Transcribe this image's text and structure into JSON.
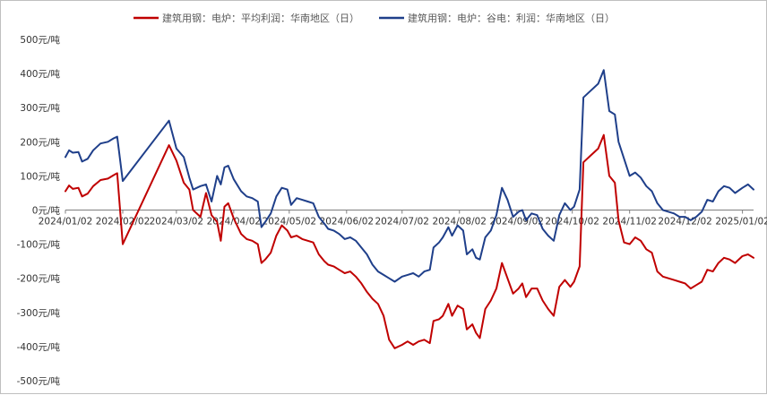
{
  "chart_data": {
    "type": "line",
    "title": "",
    "xlabel": "",
    "ylabel": "",
    "ylim": [
      -500,
      500
    ],
    "y_ticks": [
      {
        "value": 500,
        "label": "500元/吨"
      },
      {
        "value": 400,
        "label": "400元/吨"
      },
      {
        "value": 300,
        "label": "300元/吨"
      },
      {
        "value": 200,
        "label": "200元/吨"
      },
      {
        "value": 100,
        "label": "100元/吨"
      },
      {
        "value": 0,
        "label": "0元/吨"
      },
      {
        "value": -100,
        "label": "-100元/吨"
      },
      {
        "value": -200,
        "label": "-200元/吨"
      },
      {
        "value": -300,
        "label": "-300元/吨"
      },
      {
        "value": -400,
        "label": "-400元/吨"
      },
      {
        "value": -500,
        "label": "-500元/吨"
      }
    ],
    "x_range": [
      "2024-01-02",
      "2025-01-08"
    ],
    "x_ticks": [
      {
        "date": "2024-01-02",
        "label": "2024/01/02"
      },
      {
        "date": "2024-02-02",
        "label": "2024/02/02"
      },
      {
        "date": "2024-03-02",
        "label": "2024/03/02"
      },
      {
        "date": "2024-04-02",
        "label": "2024/04/02"
      },
      {
        "date": "2024-05-02",
        "label": "2024/05/02"
      },
      {
        "date": "2024-06-02",
        "label": "2024/06/02"
      },
      {
        "date": "2024-07-02",
        "label": "2024/07/02"
      },
      {
        "date": "2024-08-02",
        "label": "2024/08/02"
      },
      {
        "date": "2024-09-02",
        "label": "2024/09/02"
      },
      {
        "date": "2024-10-02",
        "label": "2024/10/02"
      },
      {
        "date": "2024-11-02",
        "label": "2024/11/02"
      },
      {
        "date": "2024-12-02",
        "label": "2024/12/02"
      },
      {
        "date": "2025-01-02",
        "label": "2025/01/02"
      }
    ],
    "legend_position": "top-center",
    "grid": false,
    "series": [
      {
        "name": "建筑用钢：电炉：平均利润：华南地区（日）",
        "color": "#c00000",
        "points": [
          [
            "2024-01-02",
            55
          ],
          [
            "2024-01-04",
            72
          ],
          [
            "2024-01-06",
            62
          ],
          [
            "2024-01-09",
            65
          ],
          [
            "2024-01-11",
            40
          ],
          [
            "2024-01-14",
            48
          ],
          [
            "2024-01-17",
            70
          ],
          [
            "2024-01-21",
            88
          ],
          [
            "2024-01-25",
            92
          ],
          [
            "2024-01-28",
            102
          ],
          [
            "2024-01-30",
            108
          ],
          [
            "2024-02-02",
            -100
          ],
          [
            "2024-02-27",
            190
          ],
          [
            "2024-03-02",
            145
          ],
          [
            "2024-03-06",
            80
          ],
          [
            "2024-03-09",
            60
          ],
          [
            "2024-03-11",
            0
          ],
          [
            "2024-03-15",
            -20
          ],
          [
            "2024-03-18",
            50
          ],
          [
            "2024-03-21",
            -15
          ],
          [
            "2024-03-24",
            -35
          ],
          [
            "2024-03-26",
            -90
          ],
          [
            "2024-03-28",
            10
          ],
          [
            "2024-03-30",
            20
          ],
          [
            "2024-04-02",
            -25
          ],
          [
            "2024-04-06",
            -70
          ],
          [
            "2024-04-09",
            -85
          ],
          [
            "2024-04-12",
            -90
          ],
          [
            "2024-04-15",
            -100
          ],
          [
            "2024-04-17",
            -155
          ],
          [
            "2024-04-19",
            -145
          ],
          [
            "2024-04-22",
            -125
          ],
          [
            "2024-04-25",
            -75
          ],
          [
            "2024-04-28",
            -45
          ],
          [
            "2024-05-01",
            -60
          ],
          [
            "2024-05-03",
            -80
          ],
          [
            "2024-05-06",
            -75
          ],
          [
            "2024-05-09",
            -85
          ],
          [
            "2024-05-12",
            -90
          ],
          [
            "2024-05-15",
            -95
          ],
          [
            "2024-05-18",
            -130
          ],
          [
            "2024-05-21",
            -150
          ],
          [
            "2024-05-23",
            -160
          ],
          [
            "2024-05-26",
            -165
          ],
          [
            "2024-05-29",
            -175
          ],
          [
            "2024-06-01",
            -185
          ],
          [
            "2024-06-04",
            -180
          ],
          [
            "2024-06-07",
            -195
          ],
          [
            "2024-06-10",
            -215
          ],
          [
            "2024-06-13",
            -240
          ],
          [
            "2024-06-16",
            -260
          ],
          [
            "2024-06-19",
            -275
          ],
          [
            "2024-06-22",
            -310
          ],
          [
            "2024-06-25",
            -380
          ],
          [
            "2024-06-28",
            -405
          ],
          [
            "2024-07-02",
            -395
          ],
          [
            "2024-07-05",
            -385
          ],
          [
            "2024-07-08",
            -395
          ],
          [
            "2024-07-11",
            -385
          ],
          [
            "2024-07-14",
            -380
          ],
          [
            "2024-07-17",
            -390
          ],
          [
            "2024-07-19",
            -325
          ],
          [
            "2024-07-22",
            -320
          ],
          [
            "2024-07-24",
            -310
          ],
          [
            "2024-07-27",
            -275
          ],
          [
            "2024-07-29",
            -310
          ],
          [
            "2024-08-01",
            -280
          ],
          [
            "2024-08-04",
            -290
          ],
          [
            "2024-08-06",
            -350
          ],
          [
            "2024-08-09",
            -335
          ],
          [
            "2024-08-11",
            -360
          ],
          [
            "2024-08-13",
            -375
          ],
          [
            "2024-08-16",
            -290
          ],
          [
            "2024-08-19",
            -265
          ],
          [
            "2024-08-22",
            -230
          ],
          [
            "2024-08-25",
            -155
          ],
          [
            "2024-08-28",
            -200
          ],
          [
            "2024-08-31",
            -245
          ],
          [
            "2024-09-03",
            -230
          ],
          [
            "2024-09-05",
            -215
          ],
          [
            "2024-09-07",
            -255
          ],
          [
            "2024-09-10",
            -230
          ],
          [
            "2024-09-13",
            -230
          ],
          [
            "2024-09-16",
            -265
          ],
          [
            "2024-09-19",
            -290
          ],
          [
            "2024-09-22",
            -310
          ],
          [
            "2024-09-25",
            -225
          ],
          [
            "2024-09-28",
            -205
          ],
          [
            "2024-10-01",
            -225
          ],
          [
            "2024-10-03",
            -210
          ],
          [
            "2024-10-06",
            -165
          ],
          [
            "2024-10-08",
            140
          ],
          [
            "2024-10-12",
            160
          ],
          [
            "2024-10-16",
            180
          ],
          [
            "2024-10-19",
            220
          ],
          [
            "2024-10-22",
            100
          ],
          [
            "2024-10-25",
            80
          ],
          [
            "2024-10-27",
            -30
          ],
          [
            "2024-10-30",
            -95
          ],
          [
            "2024-11-02",
            -100
          ],
          [
            "2024-11-05",
            -80
          ],
          [
            "2024-11-08",
            -90
          ],
          [
            "2024-11-11",
            -115
          ],
          [
            "2024-11-14",
            -125
          ],
          [
            "2024-11-17",
            -180
          ],
          [
            "2024-11-20",
            -195
          ],
          [
            "2024-11-23",
            -200
          ],
          [
            "2024-11-26",
            -205
          ],
          [
            "2024-11-29",
            -210
          ],
          [
            "2024-12-02",
            -215
          ],
          [
            "2024-12-05",
            -230
          ],
          [
            "2024-12-08",
            -220
          ],
          [
            "2024-12-11",
            -210
          ],
          [
            "2024-12-14",
            -175
          ],
          [
            "2024-12-17",
            -180
          ],
          [
            "2024-12-20",
            -155
          ],
          [
            "2024-12-23",
            -140
          ],
          [
            "2024-12-26",
            -145
          ],
          [
            "2024-12-29",
            -155
          ],
          [
            "2025-01-02",
            -135
          ],
          [
            "2025-01-05",
            -130
          ],
          [
            "2025-01-08",
            -140
          ]
        ]
      },
      {
        "name": "建筑用钢：电炉：谷电：利润：华南地区（日）",
        "color": "#1f3f8a",
        "points": [
          [
            "2024-01-02",
            155
          ],
          [
            "2024-01-04",
            175
          ],
          [
            "2024-01-06",
            168
          ],
          [
            "2024-01-09",
            170
          ],
          [
            "2024-01-11",
            142
          ],
          [
            "2024-01-14",
            150
          ],
          [
            "2024-01-17",
            175
          ],
          [
            "2024-01-21",
            195
          ],
          [
            "2024-01-25",
            200
          ],
          [
            "2024-01-28",
            210
          ],
          [
            "2024-01-30",
            215
          ],
          [
            "2024-02-02",
            85
          ],
          [
            "2024-02-27",
            262
          ],
          [
            "2024-03-02",
            180
          ],
          [
            "2024-03-06",
            155
          ],
          [
            "2024-03-09",
            95
          ],
          [
            "2024-03-11",
            60
          ],
          [
            "2024-03-15",
            70
          ],
          [
            "2024-03-18",
            75
          ],
          [
            "2024-03-21",
            25
          ],
          [
            "2024-03-24",
            100
          ],
          [
            "2024-03-26",
            75
          ],
          [
            "2024-03-28",
            125
          ],
          [
            "2024-03-30",
            130
          ],
          [
            "2024-04-02",
            90
          ],
          [
            "2024-04-06",
            55
          ],
          [
            "2024-04-09",
            40
          ],
          [
            "2024-04-12",
            35
          ],
          [
            "2024-04-15",
            25
          ],
          [
            "2024-04-17",
            -50
          ],
          [
            "2024-04-19",
            -35
          ],
          [
            "2024-04-22",
            -10
          ],
          [
            "2024-04-25",
            40
          ],
          [
            "2024-04-28",
            65
          ],
          [
            "2024-05-01",
            60
          ],
          [
            "2024-05-03",
            15
          ],
          [
            "2024-05-06",
            35
          ],
          [
            "2024-05-09",
            30
          ],
          [
            "2024-05-12",
            25
          ],
          [
            "2024-05-15",
            20
          ],
          [
            "2024-05-18",
            -20
          ],
          [
            "2024-05-21",
            -40
          ],
          [
            "2024-05-23",
            -55
          ],
          [
            "2024-05-26",
            -60
          ],
          [
            "2024-05-29",
            -70
          ],
          [
            "2024-06-01",
            -85
          ],
          [
            "2024-06-04",
            -80
          ],
          [
            "2024-06-07",
            -90
          ],
          [
            "2024-06-10",
            -110
          ],
          [
            "2024-06-13",
            -130
          ],
          [
            "2024-06-16",
            -160
          ],
          [
            "2024-06-19",
            -180
          ],
          [
            "2024-06-22",
            -190
          ],
          [
            "2024-06-25",
            -200
          ],
          [
            "2024-06-28",
            -210
          ],
          [
            "2024-07-02",
            -195
          ],
          [
            "2024-07-05",
            -190
          ],
          [
            "2024-07-08",
            -185
          ],
          [
            "2024-07-11",
            -195
          ],
          [
            "2024-07-14",
            -180
          ],
          [
            "2024-07-17",
            -175
          ],
          [
            "2024-07-19",
            -110
          ],
          [
            "2024-07-22",
            -95
          ],
          [
            "2024-07-24",
            -80
          ],
          [
            "2024-07-27",
            -50
          ],
          [
            "2024-07-29",
            -75
          ],
          [
            "2024-08-01",
            -45
          ],
          [
            "2024-08-04",
            -60
          ],
          [
            "2024-08-06",
            -130
          ],
          [
            "2024-08-09",
            -115
          ],
          [
            "2024-08-11",
            -140
          ],
          [
            "2024-08-13",
            -145
          ],
          [
            "2024-08-16",
            -80
          ],
          [
            "2024-08-19",
            -60
          ],
          [
            "2024-08-22",
            -15
          ],
          [
            "2024-08-25",
            65
          ],
          [
            "2024-08-28",
            30
          ],
          [
            "2024-08-31",
            -20
          ],
          [
            "2024-09-03",
            -5
          ],
          [
            "2024-09-05",
            0
          ],
          [
            "2024-09-07",
            -30
          ],
          [
            "2024-09-10",
            -10
          ],
          [
            "2024-09-13",
            -15
          ],
          [
            "2024-09-16",
            -55
          ],
          [
            "2024-09-19",
            -75
          ],
          [
            "2024-09-22",
            -90
          ],
          [
            "2024-09-25",
            -15
          ],
          [
            "2024-09-28",
            20
          ],
          [
            "2024-10-01",
            0
          ],
          [
            "2024-10-03",
            10
          ],
          [
            "2024-10-06",
            60
          ],
          [
            "2024-10-08",
            330
          ],
          [
            "2024-10-12",
            350
          ],
          [
            "2024-10-16",
            370
          ],
          [
            "2024-10-19",
            410
          ],
          [
            "2024-10-22",
            290
          ],
          [
            "2024-10-25",
            280
          ],
          [
            "2024-10-27",
            200
          ],
          [
            "2024-10-30",
            150
          ],
          [
            "2024-11-02",
            100
          ],
          [
            "2024-11-05",
            110
          ],
          [
            "2024-11-08",
            95
          ],
          [
            "2024-11-11",
            70
          ],
          [
            "2024-11-14",
            55
          ],
          [
            "2024-11-17",
            20
          ],
          [
            "2024-11-20",
            0
          ],
          [
            "2024-11-23",
            -5
          ],
          [
            "2024-11-26",
            -10
          ],
          [
            "2024-11-29",
            -20
          ],
          [
            "2024-12-02",
            -20
          ],
          [
            "2024-12-05",
            -30
          ],
          [
            "2024-12-08",
            -20
          ],
          [
            "2024-12-11",
            -5
          ],
          [
            "2024-12-14",
            30
          ],
          [
            "2024-12-17",
            25
          ],
          [
            "2024-12-20",
            55
          ],
          [
            "2024-12-23",
            70
          ],
          [
            "2024-12-26",
            65
          ],
          [
            "2024-12-29",
            50
          ],
          [
            "2025-01-02",
            65
          ],
          [
            "2025-01-05",
            75
          ],
          [
            "2025-01-08",
            60
          ]
        ]
      }
    ]
  }
}
